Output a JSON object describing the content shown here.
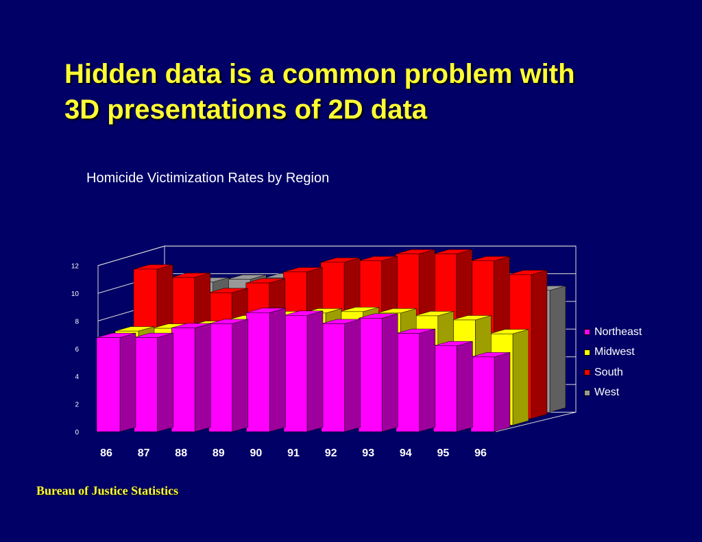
{
  "slide": {
    "title_line1": "Hidden data is a common problem with",
    "title_line2": "3D presentations of 2D data",
    "footer": "Bureau of Justice Statistics"
  },
  "colors": {
    "background": "#000066",
    "title": "#ffff33"
  },
  "chart_data": {
    "type": "bar",
    "title": "Homicide Victimization Rates by Region",
    "categories": [
      "86",
      "87",
      "88",
      "89",
      "90",
      "91",
      "92",
      "93",
      "94",
      "95",
      "96"
    ],
    "ylim": [
      0,
      12
    ],
    "yticks": [
      "0",
      "2",
      "4",
      "6",
      "8",
      "10",
      "12"
    ],
    "grid": true,
    "legend_position": "right",
    "series": [
      {
        "name": "Northeast",
        "color": "#ff00ff",
        "values": [
          6.8,
          6.8,
          7.5,
          7.8,
          8.6,
          8.4,
          7.8,
          8.2,
          7.1,
          6.2,
          5.4
        ]
      },
      {
        "name": "Midwest",
        "color": "#ffff00",
        "values": [
          6.8,
          7.0,
          7.2,
          7.6,
          7.9,
          8.1,
          8.2,
          8.1,
          7.9,
          7.6,
          6.6
        ]
      },
      {
        "name": "South",
        "color": "#ff0000",
        "values": [
          10.8,
          10.2,
          9.1,
          9.8,
          10.6,
          11.3,
          11.4,
          11.9,
          11.9,
          11.4,
          10.4
        ]
      },
      {
        "name": "West",
        "color": "#999999",
        "values": [
          9.5,
          9.4,
          9.6,
          9.7,
          9.7,
          9.8,
          9.7,
          9.6,
          9.5,
          9.3,
          8.8
        ]
      }
    ]
  }
}
